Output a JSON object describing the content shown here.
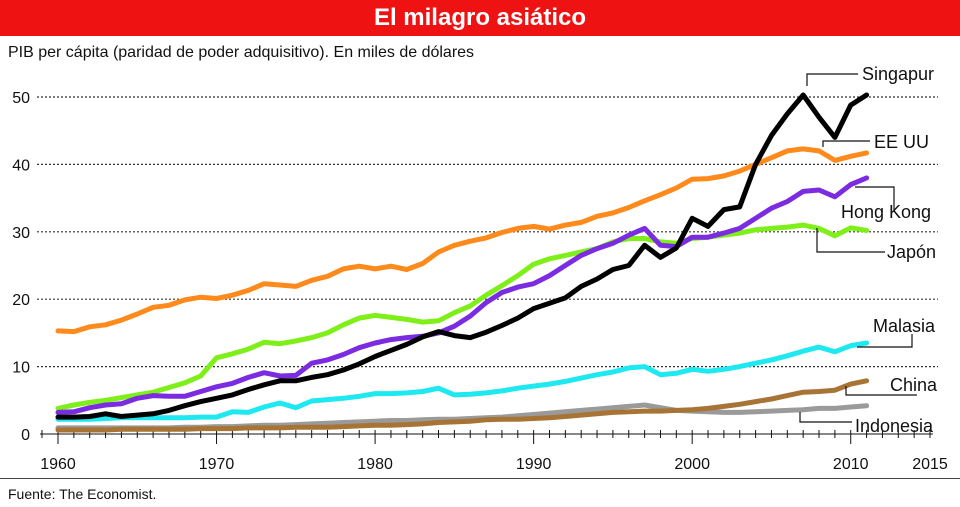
{
  "header": {
    "title": "El milagro asiático"
  },
  "subtitle": "PIB per cápita (paridad de poder adquisitivo). En miles de dólares",
  "source": "Fuente: The Economist.",
  "chart_data": {
    "type": "line",
    "title": "El milagro asiático",
    "ylabel": "PIB per cápita (PPA), miles de dólares",
    "xlabel": "",
    "xlim": [
      1960,
      2015
    ],
    "ylim": [
      0,
      50
    ],
    "grid": true,
    "x_ticks": [
      1960,
      1970,
      1980,
      1990,
      2000,
      2010,
      2015
    ],
    "y_ticks": [
      0,
      10,
      20,
      30,
      40,
      50
    ],
    "x": [
      1960,
      1961,
      1962,
      1963,
      1964,
      1965,
      1966,
      1967,
      1968,
      1969,
      1970,
      1971,
      1972,
      1973,
      1974,
      1975,
      1976,
      1977,
      1978,
      1979,
      1980,
      1981,
      1982,
      1983,
      1984,
      1985,
      1986,
      1987,
      1988,
      1989,
      1990,
      1991,
      1992,
      1993,
      1994,
      1995,
      1996,
      1997,
      1998,
      1999,
      2000,
      2001,
      2002,
      2003,
      2004,
      2005,
      2006,
      2007,
      2008,
      2009,
      2010,
      2011
    ],
    "series": [
      {
        "name": "Indonesia",
        "color": "#9a9a9a",
        "values": [
          0.9,
          0.9,
          0.9,
          0.9,
          0.9,
          0.9,
          0.9,
          0.9,
          1.0,
          1.0,
          1.1,
          1.1,
          1.2,
          1.3,
          1.3,
          1.4,
          1.5,
          1.6,
          1.7,
          1.8,
          1.9,
          2.0,
          2.0,
          2.1,
          2.2,
          2.2,
          2.3,
          2.4,
          2.5,
          2.7,
          2.9,
          3.1,
          3.3,
          3.5,
          3.7,
          3.9,
          4.1,
          4.3,
          3.9,
          3.5,
          3.4,
          3.3,
          3.2,
          3.2,
          3.3,
          3.4,
          3.5,
          3.6,
          3.8,
          3.8,
          4.0,
          4.2
        ]
      },
      {
        "name": "China",
        "color": "#a87436",
        "values": [
          0.6,
          0.6,
          0.6,
          0.6,
          0.7,
          0.7,
          0.7,
          0.7,
          0.7,
          0.8,
          0.8,
          0.8,
          0.9,
          0.9,
          0.9,
          1.0,
          1.0,
          1.0,
          1.1,
          1.2,
          1.3,
          1.3,
          1.4,
          1.5,
          1.7,
          1.8,
          1.9,
          2.1,
          2.2,
          2.2,
          2.3,
          2.4,
          2.6,
          2.8,
          3.0,
          3.2,
          3.3,
          3.4,
          3.4,
          3.5,
          3.6,
          3.8,
          4.1,
          4.4,
          4.8,
          5.2,
          5.7,
          6.2,
          6.3,
          6.5,
          7.4,
          7.9
        ]
      },
      {
        "name": "Malasia",
        "color": "#1ee8f0",
        "values": [
          2.2,
          2.2,
          2.2,
          2.3,
          2.4,
          2.4,
          2.4,
          2.4,
          2.4,
          2.5,
          2.5,
          3.3,
          3.2,
          4.0,
          4.6,
          3.9,
          4.9,
          5.1,
          5.3,
          5.6,
          6.0,
          6.0,
          6.1,
          6.3,
          6.8,
          5.8,
          5.9,
          6.1,
          6.4,
          6.8,
          7.1,
          7.4,
          7.8,
          8.3,
          8.8,
          9.2,
          9.8,
          10.0,
          8.8,
          9.0,
          9.6,
          9.3,
          9.6,
          10.0,
          10.5,
          11.0,
          11.6,
          12.3,
          12.9,
          12.2,
          13.1,
          13.5
        ]
      },
      {
        "name": "Japón",
        "color": "#7fef1a",
        "values": [
          3.8,
          4.3,
          4.7,
          5.0,
          5.4,
          5.8,
          6.2,
          6.9,
          7.6,
          8.6,
          11.3,
          11.9,
          12.6,
          13.6,
          13.4,
          13.8,
          14.3,
          15.0,
          16.2,
          17.2,
          17.6,
          17.3,
          17.0,
          16.6,
          16.8,
          18.0,
          19.0,
          20.6,
          22.0,
          23.5,
          25.2,
          26.0,
          26.5,
          27.0,
          27.5,
          28.5,
          29.0,
          29.0,
          28.5,
          28.3,
          29.0,
          29.2,
          29.5,
          29.8,
          30.3,
          30.5,
          30.7,
          31.0,
          30.5,
          29.4,
          30.6,
          30.2
        ]
      },
      {
        "name": "Hong Kong",
        "color": "#7b2ce0",
        "values": [
          3.2,
          3.3,
          3.9,
          4.3,
          4.5,
          5.3,
          5.7,
          5.6,
          5.6,
          6.3,
          7.0,
          7.5,
          8.4,
          9.1,
          8.6,
          8.7,
          10.5,
          11.0,
          11.8,
          12.8,
          13.5,
          14.0,
          14.3,
          14.5,
          15.0,
          16.0,
          17.5,
          19.5,
          21.0,
          21.8,
          22.3,
          23.5,
          25.0,
          26.5,
          27.5,
          28.3,
          29.5,
          30.5,
          28.0,
          27.8,
          29.2,
          29.2,
          29.8,
          30.5,
          32.0,
          33.5,
          34.5,
          36.0,
          36.2,
          35.2,
          37.0,
          38.0
        ]
      },
      {
        "name": "EE UU",
        "color": "#ff8a1c",
        "values": [
          15.3,
          15.2,
          15.9,
          16.2,
          16.9,
          17.8,
          18.8,
          19.1,
          19.9,
          20.3,
          20.1,
          20.6,
          21.3,
          22.3,
          22.1,
          21.9,
          22.8,
          23.4,
          24.5,
          24.9,
          24.5,
          24.9,
          24.4,
          25.3,
          27.0,
          28.0,
          28.6,
          29.1,
          29.9,
          30.5,
          30.8,
          30.4,
          31.0,
          31.4,
          32.3,
          32.8,
          33.6,
          34.6,
          35.5,
          36.5,
          37.8,
          37.9,
          38.3,
          39.0,
          40.0,
          41.0,
          42.0,
          42.3,
          42.0,
          40.6,
          41.2,
          41.7
        ]
      },
      {
        "name": "Singapur",
        "color": "#000000",
        "values": [
          2.5,
          2.5,
          2.6,
          3.0,
          2.6,
          2.8,
          3.0,
          3.5,
          4.2,
          4.8,
          5.3,
          5.8,
          6.6,
          7.3,
          7.9,
          7.9,
          8.4,
          8.8,
          9.5,
          10.4,
          11.5,
          12.4,
          13.3,
          14.4,
          15.2,
          14.6,
          14.3,
          15.1,
          16.1,
          17.2,
          18.6,
          19.4,
          20.2,
          21.9,
          23.0,
          24.4,
          25.0,
          28.0,
          26.2,
          27.6,
          32.0,
          30.8,
          33.3,
          33.7,
          40.0,
          44.3,
          47.5,
          50.3,
          47.0,
          44.0,
          48.8,
          50.3
        ]
      }
    ],
    "labels": [
      {
        "series": "Singapur",
        "text": "Singapur"
      },
      {
        "series": "EE UU",
        "text": "EE UU"
      },
      {
        "series": "Hong Kong",
        "text": "Hong Kong"
      },
      {
        "series": "Japón",
        "text": "Japón"
      },
      {
        "series": "Malasia",
        "text": "Malasia"
      },
      {
        "series": "China",
        "text": "China"
      },
      {
        "series": "Indonesia",
        "text": "Indonesia"
      }
    ]
  }
}
